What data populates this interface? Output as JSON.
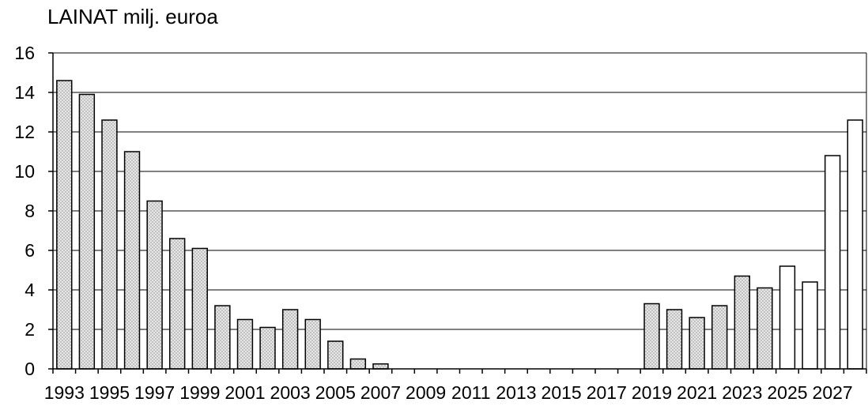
{
  "chart_data": {
    "type": "bar",
    "title": "LAINAT milj. euroa",
    "xlabel": "",
    "ylabel": "",
    "ylim": [
      0,
      16
    ],
    "yticks": [
      0,
      2,
      4,
      6,
      8,
      10,
      12,
      14,
      16
    ],
    "grid": true,
    "categories": [
      "1993",
      "1994",
      "1995",
      "1996",
      "1997",
      "1998",
      "1999",
      "2000",
      "2001",
      "2002",
      "2003",
      "2004",
      "2005",
      "2006",
      "2007",
      "2008",
      "2009",
      "2010",
      "2011",
      "2012",
      "2013",
      "2014",
      "2015",
      "2016",
      "2017",
      "2018",
      "2019",
      "2020",
      "2021",
      "2022",
      "2023",
      "2024",
      "2025",
      "2026",
      "2027",
      "2028"
    ],
    "tick_labels": [
      "1993",
      "1995",
      "1997",
      "1999",
      "2001",
      "2003",
      "2005",
      "2007",
      "2009",
      "2011",
      "2013",
      "2015",
      "2017",
      "2019",
      "2021",
      "2023",
      "2025",
      "2027"
    ],
    "series": [
      {
        "style": "dotted-fill",
        "color": "#d9d9d9",
        "values": [
          14.6,
          13.9,
          12.6,
          11.0,
          8.5,
          6.6,
          6.1,
          3.2,
          2.5,
          2.1,
          3.0,
          2.5,
          1.4,
          0.5,
          0.25,
          null,
          null,
          null,
          null,
          null,
          null,
          null,
          null,
          null,
          null,
          null,
          3.3,
          3.0,
          2.6,
          3.2,
          4.7,
          4.1,
          null,
          null,
          null,
          null
        ]
      },
      {
        "style": "hollow",
        "color": "#ffffff",
        "values": [
          null,
          null,
          null,
          null,
          null,
          null,
          null,
          null,
          null,
          null,
          null,
          null,
          null,
          null,
          null,
          null,
          null,
          null,
          null,
          null,
          null,
          null,
          null,
          null,
          null,
          null,
          null,
          null,
          null,
          null,
          null,
          null,
          5.2,
          4.4,
          10.8,
          12.6
        ]
      }
    ]
  }
}
